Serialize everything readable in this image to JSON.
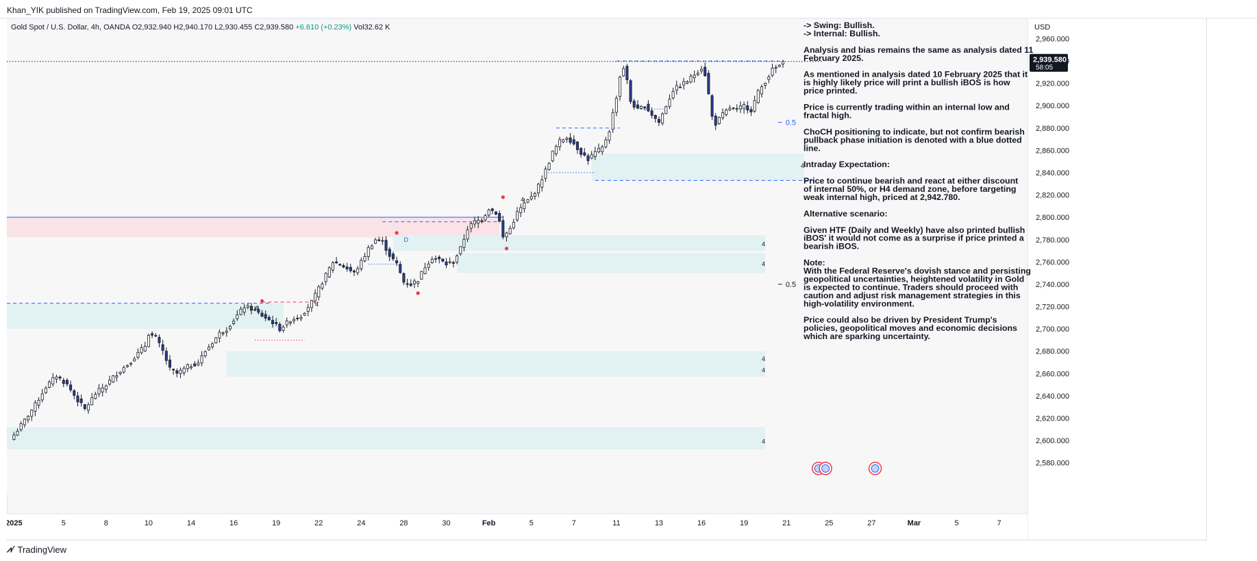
{
  "publisher": "Khan_YIK published on TradingView.com, Feb 19, 2025 09:01 UTC",
  "footer": {
    "brand": "TradingView"
  },
  "chart_data": {
    "type": "candlestick",
    "symbol": "Gold Spot / U.S. Dollar, 4h, OANDA",
    "ohlc_header": {
      "open": "O2,932.940",
      "high": "H2,940.170",
      "low": "L2,930.455",
      "close": "C2,939.580",
      "change": "+6.610 (+0.23%)",
      "volume": "Vol32.62 K"
    },
    "currency": "USD",
    "ylim": [
      2570,
      2975
    ],
    "y_ticks": [
      2580,
      2600,
      2620,
      2640,
      2660,
      2680,
      2700,
      2720,
      2740,
      2760,
      2780,
      2800,
      2820,
      2840,
      2860,
      2880,
      2900,
      2920,
      2940,
      2960
    ],
    "x_ticks": [
      {
        "label": "2025",
        "i": 0,
        "bold": true
      },
      {
        "label": "5",
        "i": 14
      },
      {
        "label": "8",
        "i": 26
      },
      {
        "label": "10",
        "i": 38
      },
      {
        "label": "14",
        "i": 50
      },
      {
        "label": "16",
        "i": 62
      },
      {
        "label": "19",
        "i": 74
      },
      {
        "label": "22",
        "i": 86
      },
      {
        "label": "24",
        "i": 98
      },
      {
        "label": "28",
        "i": 110
      },
      {
        "label": "30",
        "i": 122
      },
      {
        "label": "Feb",
        "i": 134,
        "bold": true
      },
      {
        "label": "5",
        "i": 146
      },
      {
        "label": "7",
        "i": 158
      },
      {
        "label": "11",
        "i": 170
      },
      {
        "label": "13",
        "i": 182
      },
      {
        "label": "16",
        "i": 194
      },
      {
        "label": "19",
        "i": 206
      },
      {
        "label": "21",
        "i": 218
      },
      {
        "label": "25",
        "i": 230
      },
      {
        "label": "27",
        "i": 242
      },
      {
        "label": "Mar",
        "i": 254,
        "bold": true
      },
      {
        "label": "5",
        "i": 266
      },
      {
        "label": "7",
        "i": 278
      }
    ],
    "anchors": [
      [
        0,
        2605
      ],
      [
        3,
        2618
      ],
      [
        6,
        2632
      ],
      [
        9,
        2648
      ],
      [
        12,
        2658
      ],
      [
        15,
        2650
      ],
      [
        18,
        2636
      ],
      [
        20,
        2628
      ],
      [
        23,
        2642
      ],
      [
        26,
        2650
      ],
      [
        29,
        2660
      ],
      [
        32,
        2668
      ],
      [
        35,
        2678
      ],
      [
        37,
        2685
      ],
      [
        38,
        2696
      ],
      [
        40,
        2692
      ],
      [
        42,
        2680
      ],
      [
        44,
        2664
      ],
      [
        46,
        2660
      ],
      [
        49,
        2666
      ],
      [
        52,
        2670
      ],
      [
        54,
        2680
      ],
      [
        56,
        2688
      ],
      [
        58,
        2696
      ],
      [
        60,
        2700
      ],
      [
        63,
        2712
      ],
      [
        65,
        2720
      ],
      [
        67,
        2718
      ],
      [
        70,
        2712
      ],
      [
        73,
        2706
      ],
      [
        75,
        2700
      ],
      [
        78,
        2708
      ],
      [
        81,
        2712
      ],
      [
        84,
        2724
      ],
      [
        86,
        2736
      ],
      [
        88,
        2748
      ],
      [
        90,
        2760
      ],
      [
        92,
        2758
      ],
      [
        94,
        2754
      ],
      [
        96,
        2750
      ],
      [
        98,
        2760
      ],
      [
        100,
        2772
      ],
      [
        102,
        2780
      ],
      [
        104,
        2778
      ],
      [
        106,
        2766
      ],
      [
        108,
        2758
      ],
      [
        110,
        2742
      ],
      [
        112,
        2740
      ],
      [
        114,
        2744
      ],
      [
        116,
        2756
      ],
      [
        118,
        2764
      ],
      [
        120,
        2762
      ],
      [
        122,
        2758
      ],
      [
        124,
        2760
      ],
      [
        126,
        2772
      ],
      [
        128,
        2790
      ],
      [
        130,
        2796
      ],
      [
        132,
        2798
      ],
      [
        134,
        2808
      ],
      [
        136,
        2804
      ],
      [
        137,
        2796
      ],
      [
        138,
        2782
      ],
      [
        140,
        2790
      ],
      [
        142,
        2804
      ],
      [
        144,
        2812
      ],
      [
        146,
        2818
      ],
      [
        148,
        2828
      ],
      [
        150,
        2842
      ],
      [
        152,
        2858
      ],
      [
        154,
        2868
      ],
      [
        156,
        2872
      ],
      [
        158,
        2866
      ],
      [
        160,
        2858
      ],
      [
        162,
        2852
      ],
      [
        164,
        2858
      ],
      [
        166,
        2862
      ],
      [
        168,
        2878
      ],
      [
        170,
        2908
      ],
      [
        171,
        2926
      ],
      [
        172,
        2934
      ],
      [
        173,
        2922
      ],
      [
        174,
        2904
      ],
      [
        176,
        2896
      ],
      [
        178,
        2900
      ],
      [
        180,
        2892
      ],
      [
        182,
        2885
      ],
      [
        184,
        2900
      ],
      [
        186,
        2914
      ],
      [
        188,
        2918
      ],
      [
        190,
        2922
      ],
      [
        192,
        2928
      ],
      [
        194,
        2934
      ],
      [
        195,
        2928
      ],
      [
        196,
        2910
      ],
      [
        197,
        2890
      ],
      [
        198,
        2884
      ],
      [
        200,
        2892
      ],
      [
        202,
        2898
      ],
      [
        204,
        2896
      ],
      [
        206,
        2900
      ],
      [
        208,
        2896
      ],
      [
        210,
        2912
      ],
      [
        212,
        2922
      ],
      [
        214,
        2932
      ],
      [
        216,
        2936
      ],
      [
        217,
        2939.58
      ]
    ],
    "bos_lines": [
      {
        "name": "bos-h-2800",
        "x0": -2,
        "x1": 138,
        "y": 2800,
        "color": "#2962ff",
        "style": "solid"
      },
      {
        "name": "dash-2724",
        "x0": -2,
        "x1": 72,
        "y": 2723,
        "color": "#2962ff",
        "style": "dashed"
      },
      {
        "name": "dash-top-2940",
        "x0": 170,
        "x1": 216,
        "y": 2940,
        "color": "#2962ff",
        "style": "dashed"
      },
      {
        "name": "dash-2833",
        "x0": 164,
        "x1": 226,
        "y": 2833,
        "color": "#2962ff",
        "style": "dashed"
      },
      {
        "name": "dash-2880",
        "x0": 153,
        "x1": 171,
        "y": 2880,
        "color": "#2962ff",
        "style": "dashed"
      },
      {
        "name": "dash-2796",
        "x0": 104,
        "x1": 137,
        "y": 2796,
        "color": "#2962ff",
        "style": "dashed"
      },
      {
        "name": "dot-2760",
        "x0": 100,
        "x1": 110,
        "y": 2758,
        "color": "#2962ff",
        "style": "dotted"
      },
      {
        "name": "dot-2840",
        "x0": 150,
        "x1": 164,
        "y": 2840,
        "color": "#2962ff",
        "style": "dotted"
      },
      {
        "name": "dot-2895",
        "x0": 176,
        "x1": 184,
        "y": 2897,
        "color": "#2962ff",
        "style": "dotted"
      },
      {
        "name": "red-dash-2724",
        "x0": 70,
        "x1": 86,
        "y": 2724,
        "color": "#f23645",
        "style": "dashed"
      },
      {
        "name": "red-dot-2690",
        "x0": 68,
        "x1": 82,
        "y": 2690,
        "color": "#f23645",
        "style": "dotted"
      },
      {
        "name": "price-line",
        "x0": -2,
        "x1": 228,
        "y": 2939.58,
        "color": "#131722",
        "style": "dotted"
      }
    ],
    "zones": [
      {
        "name": "supply-zone-top",
        "x0": -2,
        "x1": 137,
        "y0": 2782,
        "y1": 2800,
        "color": "#f9e3e6"
      },
      {
        "name": "demand-zone-2724",
        "x0": -2,
        "x1": 76,
        "y0": 2700,
        "y1": 2723,
        "color": "#e2f1f2"
      },
      {
        "name": "demand-zone-2780",
        "x0": 107,
        "x1": 212,
        "y0": 2770,
        "y1": 2784,
        "color": "#e2f1f2"
      },
      {
        "name": "demand-zone-2760",
        "x0": 125,
        "x1": 212,
        "y0": 2750,
        "y1": 2768,
        "color": "#e2f1f2"
      },
      {
        "name": "demand-zone-2840",
        "x0": 163,
        "x1": 223,
        "y0": 2833,
        "y1": 2857,
        "color": "#e2f1f2"
      },
      {
        "name": "demand-zone-2670",
        "x0": 60,
        "x1": 212,
        "y0": 2657,
        "y1": 2680,
        "color": "#e2f1f2"
      },
      {
        "name": "demand-zone-2605",
        "x0": -2,
        "x1": 212,
        "y0": 2592,
        "y1": 2612,
        "color": "#e2f1f2"
      }
    ],
    "zone_labels": [
      {
        "text": "4",
        "i": 211,
        "y": 2776
      },
      {
        "text": "4",
        "i": 211,
        "y": 2758
      },
      {
        "text": "4",
        "i": 222,
        "y": 2846
      },
      {
        "text": "4",
        "i": 211,
        "y": 2673
      },
      {
        "text": "4",
        "i": 211,
        "y": 2663
      },
      {
        "text": "4",
        "i": 211,
        "y": 2599
      }
    ],
    "fib_labels": [
      {
        "text": "0.5",
        "i": 216,
        "y": 2885,
        "color": "#2962ff"
      },
      {
        "text": "0.5",
        "i": 216,
        "y": 2740,
        "color": "#131722"
      }
    ],
    "chart_letters": [
      {
        "text": "D",
        "i": 110,
        "y": 2778,
        "color": "#2962ff"
      },
      {
        "text": "4",
        "i": 68,
        "y": 2717,
        "color": "#131722"
      },
      {
        "text": "4",
        "i": 85,
        "y": 2720,
        "color": "#131722"
      },
      {
        "text": "4",
        "i": 143,
        "y": 2814,
        "color": "#131722"
      }
    ],
    "red_dots": [
      {
        "i": 70,
        "y": 2725
      },
      {
        "i": 108,
        "y": 2786
      },
      {
        "i": 114,
        "y": 2732
      },
      {
        "i": 138,
        "y": 2818
      },
      {
        "i": 139,
        "y": 2772
      }
    ],
    "price_label": {
      "price": "2,939.580",
      "countdown": "58:05"
    },
    "annotations": [
      "-> Swing:  Bullish.",
      "-> Internal:  Bullish.",
      "",
      "Analysis and bias remains the same as analysis dated 11",
      "February 2025.",
      "",
      "As mentioned in analysis dated 10 February 2025 that it",
      "is highly likely price will print a bullish iBOS is how",
      "price printed.",
      "",
      "Price is currently trading within an internal low and",
      "fractal high.",
      "",
      "ChoCH positioning to indicate, but not confirm bearish",
      "pullback phase initiation is denoted with a blue dotted",
      "line.",
      "",
      "Intraday Expectation:",
      "",
      "Price to continue bearish and react at either discount",
      "of internal 50%, or H4 demand zone, before targeting",
      "weak internal high, priced at 2,942.780.",
      "",
      "Alternative scenario:",
      "",
      "Given HTF (Daily and Weekly) have also printed bullish",
      "iBOS' it would not come as a surprise if price printed a",
      "bearish iBOS.",
      "",
      "Note:",
      "With the Federal Reserve's dovish stance and persisting",
      "geopolitical uncertainties, heightened volatility in Gold",
      "is expected to continue. Traders should proceed with",
      "caution and adjust risk management strategies in this",
      "high-volatility environment.",
      "",
      "Price could also be driven by President Trump's",
      "policies, geopolitical moves and economic decisions",
      "which are sparking uncertainty."
    ],
    "event_icons": [
      {
        "i": 227,
        "y": 2575
      },
      {
        "i": 229,
        "y": 2575
      },
      {
        "i": 243,
        "y": 2575
      }
    ],
    "colors": {
      "up": "#ffffff",
      "down": "#2a3f8f",
      "wick": "#131722",
      "grid": "#f0f0f3",
      "axis_text": "#131722"
    }
  }
}
